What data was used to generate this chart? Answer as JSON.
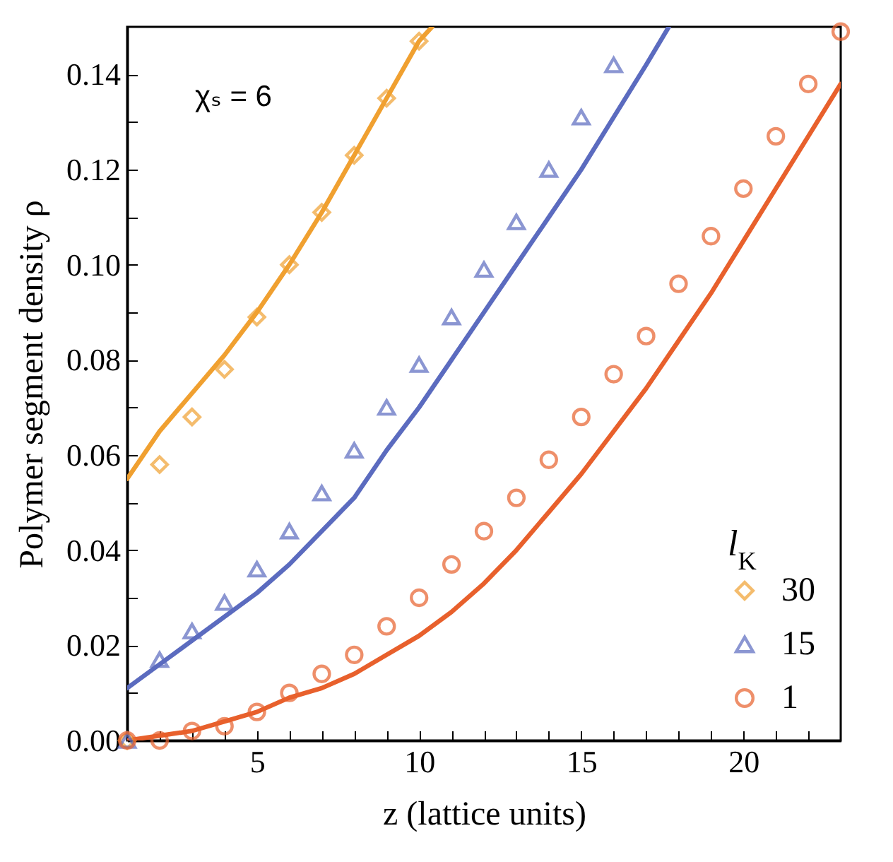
{
  "chart_data": {
    "type": "scatter",
    "xlabel": "z (lattice units)",
    "ylabel": "Polymer segment density ρ",
    "legend_title": "l$_{K}$",
    "legend": "bottom right",
    "grid": false,
    "annotations": [
      "χₛ = 6"
    ],
    "xlim": [
      1,
      23
    ],
    "ylim": [
      0,
      0.15
    ],
    "xticks": [
      {
        "value": 1,
        "label": null
      },
      {
        "value": 2,
        "label": null
      },
      {
        "value": 3,
        "label": null
      },
      {
        "value": 4,
        "label": null
      },
      5,
      {
        "value": 6,
        "label": null
      },
      {
        "value": 7,
        "label": null
      },
      {
        "value": 8,
        "label": null
      },
      {
        "value": 9,
        "label": null
      },
      10,
      {
        "value": 11,
        "label": null
      },
      {
        "value": 12,
        "label": null
      },
      {
        "value": 13,
        "label": null
      },
      {
        "value": 14,
        "label": null
      },
      15,
      {
        "value": 16,
        "label": null
      },
      {
        "value": 17,
        "label": null
      },
      {
        "value": 18,
        "label": null
      },
      {
        "value": 19,
        "label": null
      },
      20,
      {
        "value": 21,
        "label": null
      },
      {
        "value": 22,
        "label": null
      }
    ],
    "yticks": [
      {
        "value": 0,
        "label": "0.00"
      },
      {
        "value": 0.01,
        "label": null
      },
      {
        "value": 0.02,
        "label": "0.02"
      },
      {
        "value": 0.03,
        "label": null
      },
      {
        "value": 0.04,
        "label": "0.04"
      },
      {
        "value": 0.05,
        "label": null
      },
      {
        "value": 0.06,
        "label": "0.06"
      },
      {
        "value": 0.07,
        "label": null
      },
      {
        "value": 0.08,
        "label": "0.08"
      },
      {
        "value": 0.09,
        "label": null
      },
      {
        "value": 0.1,
        "label": "0.10"
      },
      {
        "value": 0.11,
        "label": null
      },
      {
        "value": 0.12,
        "label": "0.12"
      },
      {
        "value": 0.13,
        "label": null
      },
      {
        "value": 0.14,
        "label": "0.14"
      }
    ],
    "series": [
      {
        "type": "line",
        "color": "#f0a030",
        "x": [
          1,
          2,
          3,
          4,
          5,
          6,
          7,
          8,
          9,
          10,
          10.4
        ],
        "values": [
          0.055,
          0.065,
          0.073,
          0.081,
          0.09,
          0.1,
          0.111,
          0.123,
          0.135,
          0.147,
          0.15
        ]
      },
      {
        "type": "line",
        "color": "#5b6bbf",
        "x": [
          1,
          2,
          3,
          4,
          5,
          6,
          7,
          8,
          9,
          10,
          11,
          12,
          13,
          14,
          15,
          16,
          17,
          17.7
        ],
        "values": [
          0.011,
          0.016,
          0.021,
          0.026,
          0.031,
          0.037,
          0.044,
          0.051,
          0.061,
          0.07,
          0.08,
          0.09,
          0.1,
          0.11,
          0.12,
          0.131,
          0.142,
          0.15
        ]
      },
      {
        "type": "line",
        "color": "#e8602c",
        "x": [
          1,
          2,
          3,
          4,
          5,
          6,
          7,
          8,
          9,
          10,
          11,
          12,
          13,
          14,
          15,
          16,
          17,
          18,
          19,
          20,
          21,
          22,
          23
        ],
        "values": [
          0,
          0.001,
          0.002,
          0.004,
          0.006,
          0.009,
          0.011,
          0.014,
          0.018,
          0.022,
          0.027,
          0.033,
          0.04,
          0.048,
          0.056,
          0.065,
          0.074,
          0.084,
          0.094,
          0.105,
          0.116,
          0.127,
          0.138
        ]
      },
      {
        "name": "30",
        "color": "#f0a030",
        "marker": "diamond",
        "x": [
          1,
          2,
          3,
          4,
          5,
          6,
          7,
          8,
          9,
          10
        ],
        "values": [
          0,
          0.058,
          0.068,
          0.078,
          0.089,
          0.1,
          0.111,
          0.123,
          0.135,
          0.147
        ]
      },
      {
        "name": "15",
        "color": "#5b6bbf",
        "marker": "triangle",
        "x": [
          1,
          2,
          3,
          4,
          5,
          6,
          7,
          8,
          9,
          10,
          11,
          12,
          13,
          14,
          15,
          16
        ],
        "values": [
          0,
          0.017,
          0.023,
          0.029,
          0.036,
          0.044,
          0.052,
          0.061,
          0.07,
          0.079,
          0.089,
          0.099,
          0.109,
          0.12,
          0.131,
          0.142
        ]
      },
      {
        "name": "1",
        "color": "#e8602c",
        "marker": "circle",
        "x": [
          1,
          2,
          3,
          4,
          5,
          6,
          7,
          8,
          9,
          10,
          11,
          12,
          13,
          14,
          15,
          16,
          17,
          18,
          19,
          20,
          21,
          22,
          23
        ],
        "values": [
          0,
          0,
          0.002,
          0.003,
          0.006,
          0.01,
          0.014,
          0.018,
          0.024,
          0.03,
          0.037,
          0.044,
          0.051,
          0.059,
          0.068,
          0.077,
          0.085,
          0.096,
          0.106,
          0.116,
          0.127,
          0.138,
          0.149
        ]
      }
    ]
  }
}
